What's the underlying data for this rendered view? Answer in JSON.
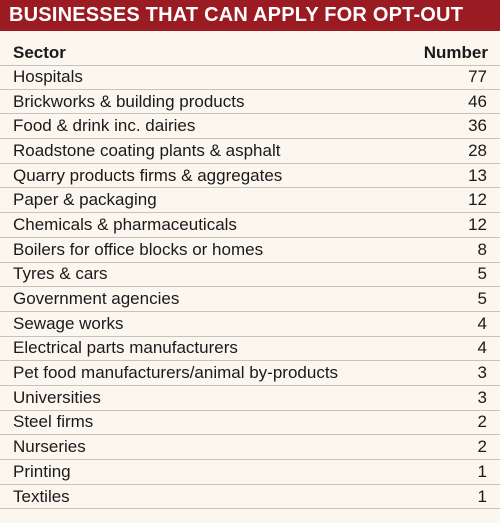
{
  "title": "BUSINESSES THAT CAN APPLY FOR OPT-OUT",
  "colors": {
    "title_background": "#9b1b22",
    "title_text": "#ffffff",
    "background": "#fbf6ee",
    "row_divider": "#c9c2b8"
  },
  "chart_data": {
    "type": "table",
    "title": "BUSINESSES THAT CAN APPLY FOR OPT-OUT",
    "columns": [
      "Sector",
      "Number"
    ],
    "rows": [
      {
        "sector": "Hospitals",
        "number": 77
      },
      {
        "sector": "Brickworks & building products",
        "number": 46
      },
      {
        "sector": "Food & drink inc. dairies",
        "number": 36
      },
      {
        "sector": "Roadstone coating plants & asphalt",
        "number": 28
      },
      {
        "sector": "Quarry products firms & aggregates",
        "number": 13
      },
      {
        "sector": "Paper & packaging",
        "number": 12
      },
      {
        "sector": "Chemicals & pharmaceuticals",
        "number": 12
      },
      {
        "sector": "Boilers for office blocks or homes",
        "number": 8
      },
      {
        "sector": "Tyres & cars",
        "number": 5
      },
      {
        "sector": "Government agencies",
        "number": 5
      },
      {
        "sector": "Sewage works",
        "number": 4
      },
      {
        "sector": "Electrical parts manufacturers",
        "number": 4
      },
      {
        "sector": "Pet food manufacturers/animal by-products",
        "number": 3
      },
      {
        "sector": "Universities",
        "number": 3
      },
      {
        "sector": "Steel firms",
        "number": 2
      },
      {
        "sector": "Nurseries",
        "number": 2
      },
      {
        "sector": "Printing",
        "number": 1
      },
      {
        "sector": "Textiles",
        "number": 1
      }
    ]
  }
}
